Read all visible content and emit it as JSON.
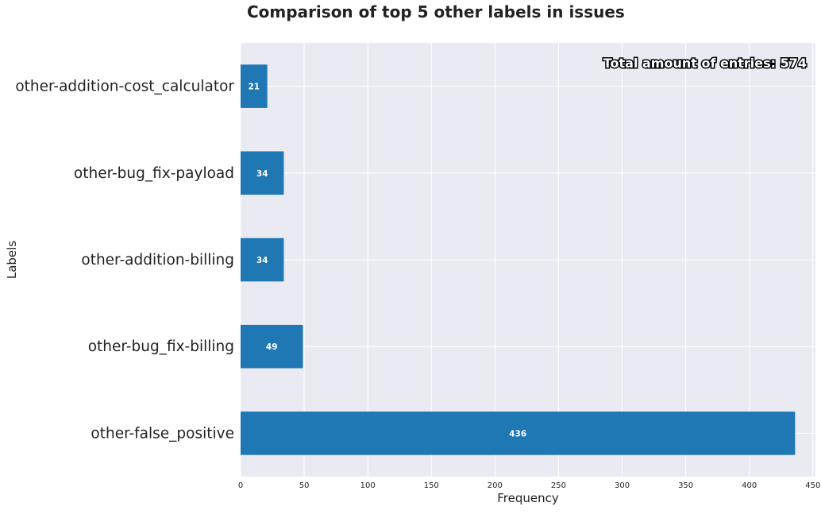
{
  "chart_data": {
    "type": "bar",
    "orientation": "horizontal",
    "title": "Comparison of top 5 other labels in issues",
    "xlabel": "Frequency",
    "ylabel": "Labels",
    "categories": [
      "other-addition-cost_calculator",
      "other-bug_fix-payload",
      "other-addition-billing",
      "other-bug_fix-billing",
      "other-false_positive"
    ],
    "values": [
      21,
      34,
      34,
      49,
      436
    ],
    "xlim": [
      0,
      452
    ],
    "xticks": [
      0,
      50,
      100,
      150,
      200,
      250,
      300,
      350,
      400,
      450
    ],
    "grid": true,
    "bar_color": "#1f77b4",
    "background_color": "#eaeaf2",
    "annotation": "Total amount of entries: 574"
  }
}
